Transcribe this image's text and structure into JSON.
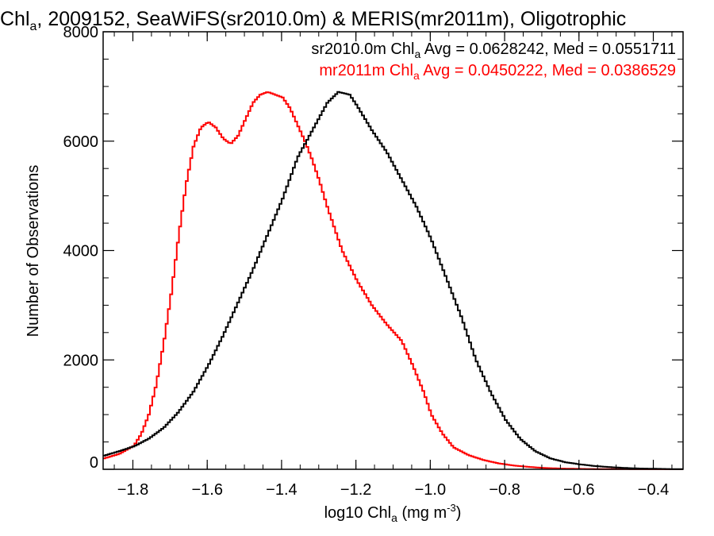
{
  "chart_data": {
    "type": "line",
    "title": {
      "pre": "Chl",
      "sub": "a",
      "post": ", 2009152, SeaWiFS(sr2010.0m) & MERIS(mr2011m), Oligotrophic"
    },
    "xlabel": {
      "pre": "log10 Chl",
      "sub": "a",
      "mid": " (mg m",
      "sup": "-3",
      "post": ")"
    },
    "ylabel": "Number of Observations",
    "xlim": [
      -1.88,
      -0.32
    ],
    "ylim": [
      0,
      8000
    ],
    "x_ticks": [
      -1.8,
      -1.6,
      -1.4,
      -1.2,
      -1.0,
      -0.8,
      -0.6,
      -0.4
    ],
    "x_tick_labels": [
      "−1.8",
      "−1.6",
      "−1.4",
      "−1.2",
      "−1.0",
      "−0.8",
      "−0.6",
      "−0.4"
    ],
    "y_ticks": [
      0,
      2000,
      4000,
      6000,
      8000
    ],
    "y_tick_labels": [
      "0",
      "2000",
      "4000",
      "6000",
      "8000"
    ],
    "grid": false,
    "legend_position": "top-right",
    "series": [
      {
        "name": "sr2010.0m",
        "color": "#000000",
        "stat": {
          "pre": "sr2010.0m Chl",
          "sub": "a",
          "post": " Avg = 0.0628242, Med = 0.0551711"
        },
        "x": [
          -1.88,
          -1.84,
          -1.8,
          -1.76,
          -1.72,
          -1.68,
          -1.64,
          -1.6,
          -1.56,
          -1.52,
          -1.48,
          -1.44,
          -1.4,
          -1.36,
          -1.32,
          -1.28,
          -1.25,
          -1.22,
          -1.2,
          -1.16,
          -1.12,
          -1.08,
          -1.04,
          -1.0,
          -0.96,
          -0.92,
          -0.88,
          -0.84,
          -0.8,
          -0.76,
          -0.72,
          -0.68,
          -0.64,
          -0.6,
          -0.56,
          -0.52,
          -0.48,
          -0.44,
          -0.4,
          -0.36,
          -0.32
        ],
        "y": [
          250,
          330,
          420,
          560,
          760,
          1050,
          1420,
          1900,
          2450,
          3050,
          3650,
          4300,
          4950,
          5700,
          6200,
          6700,
          6900,
          6850,
          6650,
          6200,
          5800,
          5300,
          4800,
          4200,
          3500,
          2800,
          2000,
          1400,
          900,
          550,
          330,
          200,
          130,
          90,
          60,
          40,
          25,
          15,
          10,
          5,
          3
        ]
      },
      {
        "name": "mr2011m",
        "color": "#ff0000",
        "stat": {
          "pre": "mr2011m Chl",
          "sub": "a",
          "post": " Avg = 0.0450222, Med = 0.0386529"
        },
        "x": [
          -1.88,
          -1.84,
          -1.8,
          -1.78,
          -1.76,
          -1.74,
          -1.72,
          -1.7,
          -1.68,
          -1.66,
          -1.64,
          -1.62,
          -1.6,
          -1.58,
          -1.56,
          -1.54,
          -1.52,
          -1.5,
          -1.48,
          -1.46,
          -1.44,
          -1.42,
          -1.4,
          -1.38,
          -1.36,
          -1.34,
          -1.32,
          -1.3,
          -1.28,
          -1.26,
          -1.24,
          -1.2,
          -1.16,
          -1.12,
          -1.08,
          -1.05,
          -1.02,
          -1.0,
          -0.97,
          -0.94,
          -0.9,
          -0.86,
          -0.82,
          -0.78,
          -0.74,
          -0.7,
          -0.66,
          -0.62,
          -0.58,
          -0.54,
          -0.5,
          -0.46,
          -0.42,
          -0.38,
          -0.34,
          -0.32
        ],
        "y": [
          200,
          280,
          430,
          650,
          1000,
          1550,
          2300,
          3200,
          4250,
          5200,
          5900,
          6250,
          6350,
          6250,
          6050,
          5950,
          6100,
          6400,
          6700,
          6850,
          6900,
          6850,
          6800,
          6600,
          6300,
          6000,
          5650,
          5250,
          4800,
          4400,
          4000,
          3450,
          3000,
          2650,
          2350,
          1900,
          1400,
          1000,
          650,
          400,
          260,
          170,
          110,
          70,
          45,
          25,
          15,
          10,
          6,
          4,
          3,
          2,
          1,
          1,
          0,
          0
        ]
      }
    ]
  }
}
